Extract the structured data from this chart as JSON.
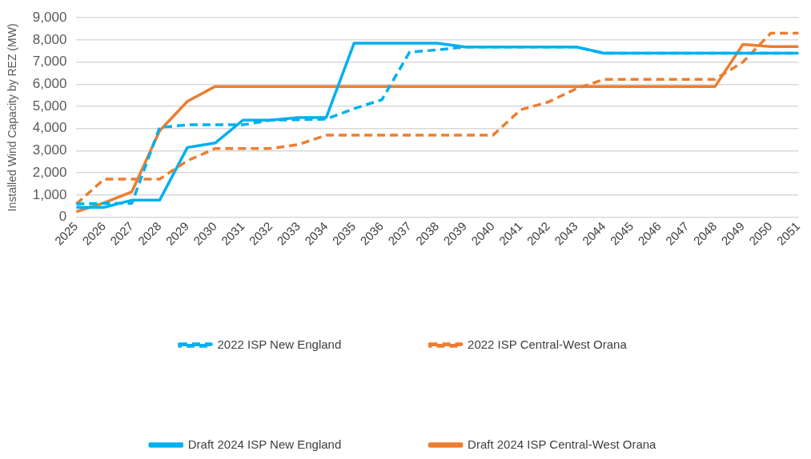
{
  "chart_data": {
    "type": "line",
    "ylabel": "Installed Wind Capacity by REZ (MW)",
    "categories": [
      "2025",
      "2026",
      "2027",
      "2028",
      "2029",
      "2030",
      "2031",
      "2032",
      "2033",
      "2034",
      "2035",
      "2036",
      "2037",
      "2038",
      "2039",
      "2040",
      "2041",
      "2042",
      "2043",
      "2044",
      "2045",
      "2046",
      "2047",
      "2048",
      "2049",
      "2050",
      "2051"
    ],
    "series": [
      {
        "name": "2022 ISP New England",
        "color": "#00b0f0",
        "line_style": "dashed",
        "values": [
          600,
          630,
          630,
          4050,
          4170,
          4170,
          4170,
          4380,
          4400,
          4430,
          4900,
          5300,
          7450,
          7550,
          7680,
          7680,
          7680,
          7680,
          7680,
          7400,
          7400,
          7400,
          7400,
          7400,
          7400,
          7400,
          7400
        ]
      },
      {
        "name": "2022 ISP Central-West Orana",
        "color": "#ed7d31",
        "line_style": "dashed",
        "values": [
          600,
          1720,
          1720,
          1720,
          2550,
          3100,
          3100,
          3100,
          3280,
          3700,
          3700,
          3700,
          3700,
          3700,
          3700,
          3700,
          4850,
          5200,
          5800,
          6220,
          6220,
          6220,
          6220,
          6220,
          7000,
          8300,
          8300
        ]
      },
      {
        "name": "Draft 2024 ISP New England",
        "color": "#00b0f0",
        "line_style": "solid",
        "values": [
          450,
          450,
          770,
          770,
          3150,
          3350,
          4380,
          4380,
          4500,
          4500,
          7850,
          7850,
          7850,
          7850,
          7680,
          7680,
          7680,
          7680,
          7680,
          7400,
          7400,
          7400,
          7400,
          7400,
          7400,
          7400,
          7400
        ]
      },
      {
        "name": "Draft 2024 ISP Central-West Orana",
        "color": "#ed7d31",
        "line_style": "solid",
        "values": [
          250,
          650,
          1150,
          3900,
          5230,
          5900,
          5900,
          5900,
          5900,
          5900,
          5900,
          5900,
          5900,
          5900,
          5900,
          5900,
          5900,
          5900,
          5900,
          5900,
          5900,
          5900,
          5900,
          5900,
          7800,
          7700,
          7700
        ]
      }
    ],
    "ylim": [
      0,
      9000
    ],
    "yticks": [
      0,
      {
        "value": 1000,
        "label": "1,000"
      },
      {
        "value": 2000,
        "label": "2,000"
      },
      {
        "value": 3000,
        "label": "3,000"
      },
      {
        "value": 4000,
        "label": "4,000"
      },
      {
        "value": 5000,
        "label": "5,000"
      },
      {
        "value": 6000,
        "label": "6,000"
      },
      {
        "value": 7000,
        "label": "7,000"
      },
      {
        "value": 8000,
        "label": "8,000"
      },
      {
        "value": 9000,
        "label": "9,000"
      }
    ],
    "grid": "y",
    "legend": "bottom",
    "marker": "none"
  }
}
